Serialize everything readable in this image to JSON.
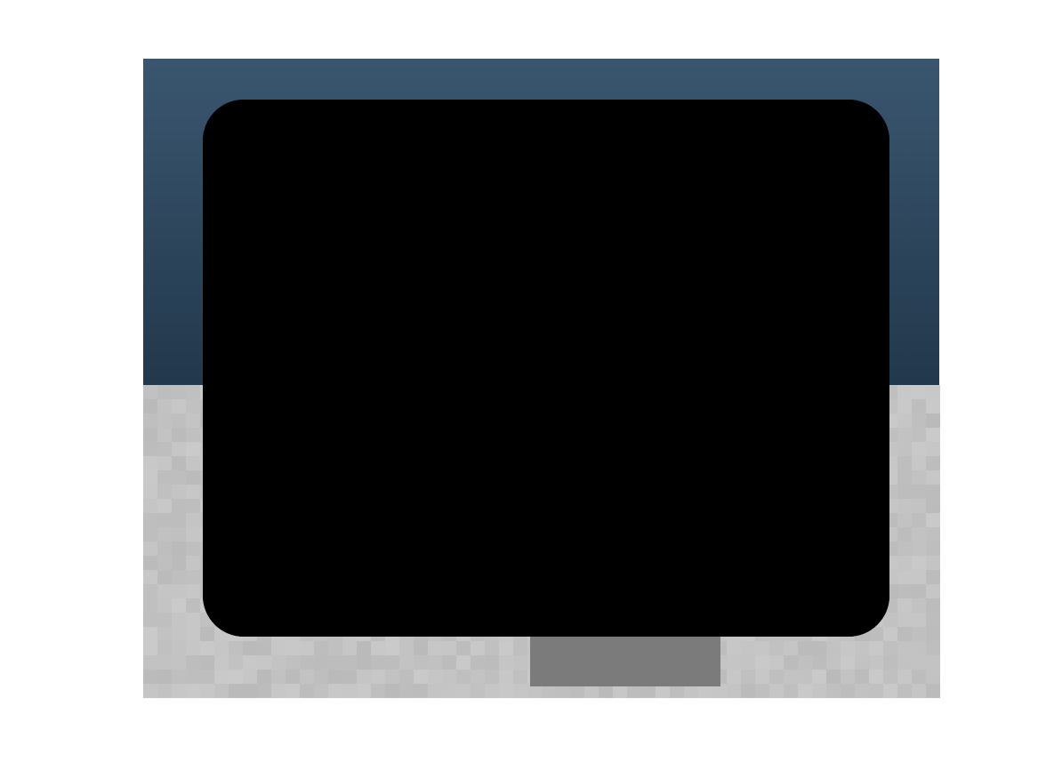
{
  "chart_data": {
    "type": "heatmap",
    "title": "",
    "xlabel": "",
    "ylabel": "",
    "axes_visible": false,
    "grid": false,
    "legend": "none",
    "colormap": "jet",
    "grid_size": [
      56,
      44
    ],
    "background_image": {
      "description_colors": {
        "sky_top": "#3a566f",
        "sky_bottom": "#22384c",
        "floor": "#c2c2c2",
        "object_shadow": "#7b7b7b"
      },
      "horizon_fraction": 0.52
    },
    "overlay": {
      "shape": "rounded-rectangle",
      "color_base": "#00007f",
      "peak": {
        "col": 28,
        "row": 19,
        "value": 1.0
      },
      "orientation_deg": -42,
      "sigma_major": 9.2,
      "sigma_minor": 4.6
    }
  }
}
